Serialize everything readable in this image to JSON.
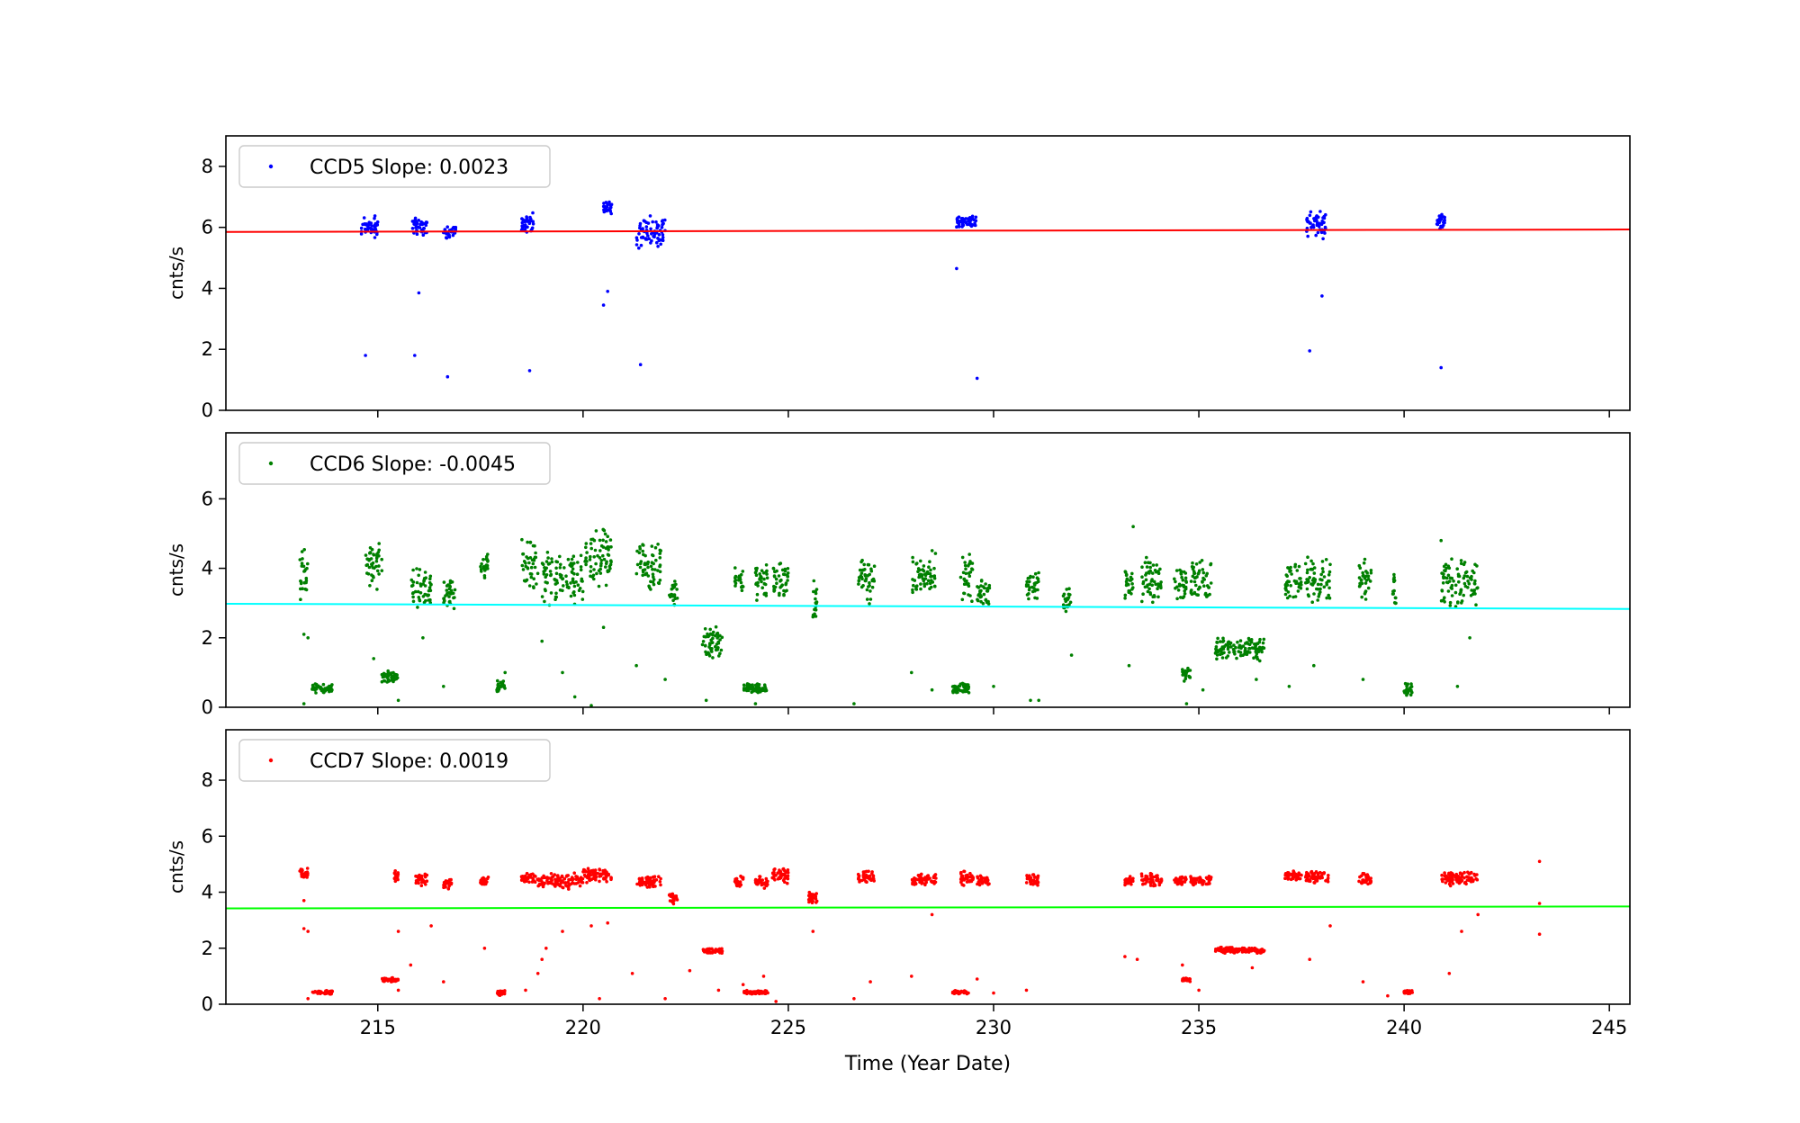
{
  "figure": {
    "xlabel": "Time (Year Date)"
  },
  "chart_data": [
    {
      "type": "scatter",
      "ylabel": "cnts/s",
      "xlim": [
        211.3,
        245.5
      ],
      "ylim": [
        0,
        9
      ],
      "x_ticks": [
        215,
        220,
        225,
        230,
        235,
        240,
        245
      ],
      "y_ticks": [
        0,
        2,
        4,
        6,
        8
      ],
      "grid": false,
      "legend": {
        "placement": "top-left",
        "label": "CCD5 Slope: 0.0023"
      },
      "point_color": "#0000ff",
      "fit_color": "#ff0000",
      "fit_line": {
        "x": [
          211.3,
          245.5
        ],
        "y": [
          5.85,
          5.93
        ]
      },
      "clusters": [
        {
          "x": [
            214.6,
            215.0
          ],
          "y": [
            5.5,
            6.5
          ]
        },
        {
          "x": [
            215.8,
            216.2
          ],
          "y": [
            5.7,
            6.4
          ]
        },
        {
          "x": [
            216.6,
            216.9
          ],
          "y": [
            5.6,
            6.1
          ]
        },
        {
          "x": [
            218.5,
            218.8
          ],
          "y": [
            5.8,
            6.5
          ]
        },
        {
          "x": [
            220.5,
            220.7
          ],
          "y": [
            6.4,
            6.9
          ]
        },
        {
          "x": [
            221.3,
            222.0
          ],
          "y": [
            5.2,
            6.4
          ]
        },
        {
          "x": [
            229.1,
            229.6
          ],
          "y": [
            6.0,
            6.4
          ]
        },
        {
          "x": [
            237.6,
            238.1
          ],
          "y": [
            5.6,
            6.6
          ]
        },
        {
          "x": [
            240.8,
            241.0
          ],
          "y": [
            5.9,
            6.5
          ]
        }
      ],
      "points": [
        [
          214.7,
          1.8
        ],
        [
          215.9,
          1.8
        ],
        [
          216.0,
          3.85
        ],
        [
          216.7,
          1.1
        ],
        [
          218.7,
          1.3
        ],
        [
          220.5,
          3.45
        ],
        [
          220.6,
          3.9
        ],
        [
          221.4,
          1.5
        ],
        [
          229.1,
          4.65
        ],
        [
          229.6,
          1.05
        ],
        [
          237.7,
          1.95
        ],
        [
          238.0,
          3.75
        ],
        [
          240.9,
          1.4
        ]
      ]
    },
    {
      "type": "scatter",
      "ylabel": "cnts/s",
      "xlim": [
        211.3,
        245.5
      ],
      "ylim": [
        0,
        7.9
      ],
      "x_ticks": [
        215,
        220,
        225,
        230,
        235,
        240,
        245
      ],
      "y_ticks": [
        0,
        2,
        4,
        6
      ],
      "grid": false,
      "legend": {
        "placement": "top-left",
        "label": "CCD6 Slope: -0.0045"
      },
      "point_color": "#008000",
      "fit_color": "#00ffff",
      "fit_line": {
        "x": [
          211.3,
          245.5
        ],
        "y": [
          2.98,
          2.83
        ]
      },
      "clusters": [
        {
          "x": [
            213.1,
            213.3
          ],
          "y": [
            3.0,
            4.7
          ]
        },
        {
          "x": [
            213.4,
            213.9
          ],
          "y": [
            0.4,
            0.7
          ]
        },
        {
          "x": [
            214.7,
            215.1
          ],
          "y": [
            3.3,
            4.8
          ]
        },
        {
          "x": [
            215.1,
            215.5
          ],
          "y": [
            0.7,
            1.1
          ]
        },
        {
          "x": [
            215.8,
            216.3
          ],
          "y": [
            2.8,
            4.1
          ]
        },
        {
          "x": [
            216.6,
            216.9
          ],
          "y": [
            2.8,
            3.7
          ]
        },
        {
          "x": [
            217.5,
            217.7
          ],
          "y": [
            3.7,
            4.5
          ]
        },
        {
          "x": [
            217.9,
            218.1
          ],
          "y": [
            0.4,
            0.8
          ]
        },
        {
          "x": [
            218.5,
            218.9
          ],
          "y": [
            3.3,
            5.0
          ]
        },
        {
          "x": [
            219.0,
            220.0
          ],
          "y": [
            2.9,
            4.5
          ]
        },
        {
          "x": [
            220.0,
            220.7
          ],
          "y": [
            3.3,
            5.2
          ]
        },
        {
          "x": [
            221.3,
            221.9
          ],
          "y": [
            3.2,
            4.8
          ]
        },
        {
          "x": [
            222.1,
            222.3
          ],
          "y": [
            2.9,
            3.8
          ]
        },
        {
          "x": [
            222.9,
            223.4
          ],
          "y": [
            1.3,
            2.4
          ]
        },
        {
          "x": [
            223.7,
            223.9
          ],
          "y": [
            3.3,
            4.1
          ]
        },
        {
          "x": [
            223.9,
            224.5
          ],
          "y": [
            0.4,
            0.7
          ]
        },
        {
          "x": [
            224.2,
            224.5
          ],
          "y": [
            3.0,
            4.3
          ]
        },
        {
          "x": [
            224.6,
            225.0
          ],
          "y": [
            3.1,
            4.2
          ]
        },
        {
          "x": [
            225.6,
            225.7
          ],
          "y": [
            2.5,
            3.7
          ]
        },
        {
          "x": [
            226.7,
            227.1
          ],
          "y": [
            2.9,
            4.4
          ]
        },
        {
          "x": [
            228.0,
            228.6
          ],
          "y": [
            3.1,
            4.6
          ]
        },
        {
          "x": [
            229.0,
            229.4
          ],
          "y": [
            0.4,
            0.7
          ]
        },
        {
          "x": [
            229.2,
            229.5
          ],
          "y": [
            2.9,
            4.6
          ]
        },
        {
          "x": [
            229.6,
            229.9
          ],
          "y": [
            2.9,
            3.8
          ]
        },
        {
          "x": [
            230.8,
            231.1
          ],
          "y": [
            2.9,
            4.0
          ]
        },
        {
          "x": [
            231.7,
            231.9
          ],
          "y": [
            2.7,
            3.5
          ]
        },
        {
          "x": [
            233.2,
            233.4
          ],
          "y": [
            3.0,
            4.2
          ]
        },
        {
          "x": [
            233.6,
            234.1
          ],
          "y": [
            2.9,
            4.4
          ]
        },
        {
          "x": [
            234.4,
            234.7
          ],
          "y": [
            3.0,
            4.2
          ]
        },
        {
          "x": [
            234.6,
            234.8
          ],
          "y": [
            0.7,
            1.2
          ]
        },
        {
          "x": [
            234.8,
            235.3
          ],
          "y": [
            2.9,
            4.3
          ]
        },
        {
          "x": [
            235.4,
            236.6
          ],
          "y": [
            1.3,
            2.1
          ]
        },
        {
          "x": [
            237.1,
            237.5
          ],
          "y": [
            2.9,
            4.3
          ]
        },
        {
          "x": [
            237.6,
            238.2
          ],
          "y": [
            2.9,
            4.4
          ]
        },
        {
          "x": [
            238.9,
            239.2
          ],
          "y": [
            2.9,
            4.4
          ]
        },
        {
          "x": [
            239.7,
            239.8
          ],
          "y": [
            2.8,
            4.1
          ]
        },
        {
          "x": [
            240.0,
            240.2
          ],
          "y": [
            0.3,
            0.7
          ]
        },
        {
          "x": [
            240.9,
            241.8
          ],
          "y": [
            2.8,
            4.3
          ]
        }
      ],
      "points": [
        [
          213.2,
          2.1
        ],
        [
          213.3,
          2.0
        ],
        [
          213.2,
          0.1
        ],
        [
          214.9,
          1.4
        ],
        [
          215.5,
          0.2
        ],
        [
          216.1,
          2.0
        ],
        [
          216.6,
          0.6
        ],
        [
          218.1,
          1.0
        ],
        [
          219.0,
          1.9
        ],
        [
          219.5,
          1.0
        ],
        [
          219.8,
          0.3
        ],
        [
          220.2,
          0.05
        ],
        [
          220.5,
          2.3
        ],
        [
          221.3,
          1.2
        ],
        [
          222.0,
          0.8
        ],
        [
          223.0,
          0.2
        ],
        [
          224.2,
          0.1
        ],
        [
          225.6,
          2.6
        ],
        [
          226.6,
          0.1
        ],
        [
          228.0,
          1.0
        ],
        [
          228.5,
          0.5
        ],
        [
          230.0,
          0.6
        ],
        [
          230.9,
          0.2
        ],
        [
          231.1,
          0.2
        ],
        [
          231.9,
          1.5
        ],
        [
          233.3,
          1.2
        ],
        [
          233.4,
          5.2
        ],
        [
          234.7,
          0.1
        ],
        [
          235.1,
          0.5
        ],
        [
          236.4,
          0.8
        ],
        [
          237.2,
          0.6
        ],
        [
          237.8,
          1.2
        ],
        [
          239.0,
          0.8
        ],
        [
          240.9,
          4.8
        ],
        [
          241.3,
          0.6
        ],
        [
          241.6,
          2.0
        ]
      ]
    },
    {
      "type": "scatter",
      "ylabel": "cnts/s",
      "xlim": [
        211.3,
        245.5
      ],
      "ylim": [
        0,
        9.8
      ],
      "x_ticks": [
        215,
        220,
        225,
        230,
        235,
        240,
        245
      ],
      "x_tick_labels": [
        "215",
        "220",
        "225",
        "230",
        "235",
        "240",
        "245"
      ],
      "y_ticks": [
        0,
        2,
        4,
        6,
        8
      ],
      "grid": false,
      "legend": {
        "placement": "top-left",
        "label": "CCD7 Slope: 0.0019"
      },
      "point_color": "#ff0000",
      "fit_color": "#00ff00",
      "fit_line": {
        "x": [
          211.3,
          245.5
        ],
        "y": [
          3.42,
          3.49
        ]
      },
      "clusters": [
        {
          "x": [
            213.1,
            213.3
          ],
          "y": [
            4.5,
            4.9
          ]
        },
        {
          "x": [
            213.4,
            213.9
          ],
          "y": [
            0.35,
            0.5
          ]
        },
        {
          "x": [
            215.1,
            215.5
          ],
          "y": [
            0.8,
            0.95
          ]
        },
        {
          "x": [
            215.4,
            215.5
          ],
          "y": [
            4.3,
            4.8
          ]
        },
        {
          "x": [
            215.9,
            216.2
          ],
          "y": [
            4.2,
            4.7
          ]
        },
        {
          "x": [
            216.6,
            216.8
          ],
          "y": [
            4.1,
            4.6
          ]
        },
        {
          "x": [
            217.5,
            217.7
          ],
          "y": [
            4.2,
            4.6
          ]
        },
        {
          "x": [
            217.9,
            218.1
          ],
          "y": [
            0.3,
            0.5
          ]
        },
        {
          "x": [
            218.5,
            218.9
          ],
          "y": [
            4.3,
            4.7
          ]
        },
        {
          "x": [
            218.9,
            220.0
          ],
          "y": [
            4.1,
            4.7
          ]
        },
        {
          "x": [
            220.0,
            220.7
          ],
          "y": [
            4.3,
            4.9
          ]
        },
        {
          "x": [
            221.3,
            221.9
          ],
          "y": [
            4.1,
            4.6
          ]
        },
        {
          "x": [
            222.1,
            222.3
          ],
          "y": [
            3.5,
            4.0
          ]
        },
        {
          "x": [
            222.9,
            223.4
          ],
          "y": [
            1.8,
            2.0
          ]
        },
        {
          "x": [
            223.7,
            223.9
          ],
          "y": [
            4.2,
            4.6
          ]
        },
        {
          "x": [
            223.9,
            224.5
          ],
          "y": [
            0.35,
            0.5
          ]
        },
        {
          "x": [
            224.2,
            224.5
          ],
          "y": [
            4.1,
            4.6
          ]
        },
        {
          "x": [
            224.6,
            225.0
          ],
          "y": [
            4.3,
            4.9
          ]
        },
        {
          "x": [
            225.5,
            225.7
          ],
          "y": [
            3.6,
            4.0
          ]
        },
        {
          "x": [
            226.7,
            227.1
          ],
          "y": [
            4.3,
            4.8
          ]
        },
        {
          "x": [
            228.0,
            228.6
          ],
          "y": [
            4.2,
            4.7
          ]
        },
        {
          "x": [
            229.0,
            229.4
          ],
          "y": [
            0.35,
            0.5
          ]
        },
        {
          "x": [
            229.2,
            229.5
          ],
          "y": [
            4.2,
            4.8
          ]
        },
        {
          "x": [
            229.6,
            229.9
          ],
          "y": [
            4.2,
            4.6
          ]
        },
        {
          "x": [
            230.8,
            231.1
          ],
          "y": [
            4.2,
            4.7
          ]
        },
        {
          "x": [
            233.2,
            233.4
          ],
          "y": [
            4.2,
            4.6
          ]
        },
        {
          "x": [
            233.6,
            234.1
          ],
          "y": [
            4.2,
            4.7
          ]
        },
        {
          "x": [
            234.4,
            234.7
          ],
          "y": [
            4.2,
            4.6
          ]
        },
        {
          "x": [
            234.6,
            234.8
          ],
          "y": [
            0.8,
            0.95
          ]
        },
        {
          "x": [
            234.8,
            235.3
          ],
          "y": [
            4.2,
            4.6
          ]
        },
        {
          "x": [
            235.4,
            236.6
          ],
          "y": [
            1.8,
            2.05
          ]
        },
        {
          "x": [
            237.1,
            237.5
          ],
          "y": [
            4.4,
            4.8
          ]
        },
        {
          "x": [
            237.6,
            238.2
          ],
          "y": [
            4.3,
            4.8
          ]
        },
        {
          "x": [
            238.9,
            239.2
          ],
          "y": [
            4.2,
            4.7
          ]
        },
        {
          "x": [
            240.0,
            240.2
          ],
          "y": [
            0.35,
            0.5
          ]
        },
        {
          "x": [
            240.9,
            241.8
          ],
          "y": [
            4.2,
            4.8
          ]
        }
      ],
      "points": [
        [
          213.2,
          2.7
        ],
        [
          213.3,
          2.6
        ],
        [
          213.2,
          3.7
        ],
        [
          213.3,
          0.2
        ],
        [
          215.5,
          0.5
        ],
        [
          215.5,
          2.6
        ],
        [
          215.8,
          1.4
        ],
        [
          216.3,
          2.8
        ],
        [
          216.6,
          0.8
        ],
        [
          217.6,
          2.0
        ],
        [
          218.6,
          0.5
        ],
        [
          218.9,
          1.1
        ],
        [
          219.0,
          1.6
        ],
        [
          219.1,
          2.0
        ],
        [
          219.5,
          2.6
        ],
        [
          220.2,
          2.8
        ],
        [
          220.4,
          0.2
        ],
        [
          220.6,
          2.9
        ],
        [
          221.2,
          1.1
        ],
        [
          222.0,
          0.2
        ],
        [
          222.6,
          1.2
        ],
        [
          223.3,
          0.5
        ],
        [
          223.9,
          0.7
        ],
        [
          224.4,
          1.0
        ],
        [
          224.7,
          0.1
        ],
        [
          225.6,
          2.6
        ],
        [
          226.6,
          0.2
        ],
        [
          227.0,
          0.8
        ],
        [
          228.0,
          1.0
        ],
        [
          228.5,
          3.2
        ],
        [
          229.6,
          0.9
        ],
        [
          230.0,
          0.4
        ],
        [
          230.8,
          0.5
        ],
        [
          233.2,
          1.7
        ],
        [
          233.5,
          1.6
        ],
        [
          234.6,
          1.4
        ],
        [
          235.0,
          0.5
        ],
        [
          236.3,
          1.3
        ],
        [
          237.7,
          1.6
        ],
        [
          238.2,
          2.8
        ],
        [
          239.0,
          0.8
        ],
        [
          239.6,
          0.3
        ],
        [
          241.1,
          1.1
        ],
        [
          241.4,
          2.6
        ],
        [
          241.8,
          3.2
        ],
        [
          243.3,
          5.1
        ],
        [
          243.3,
          3.6
        ],
        [
          243.3,
          2.5
        ]
      ]
    }
  ]
}
